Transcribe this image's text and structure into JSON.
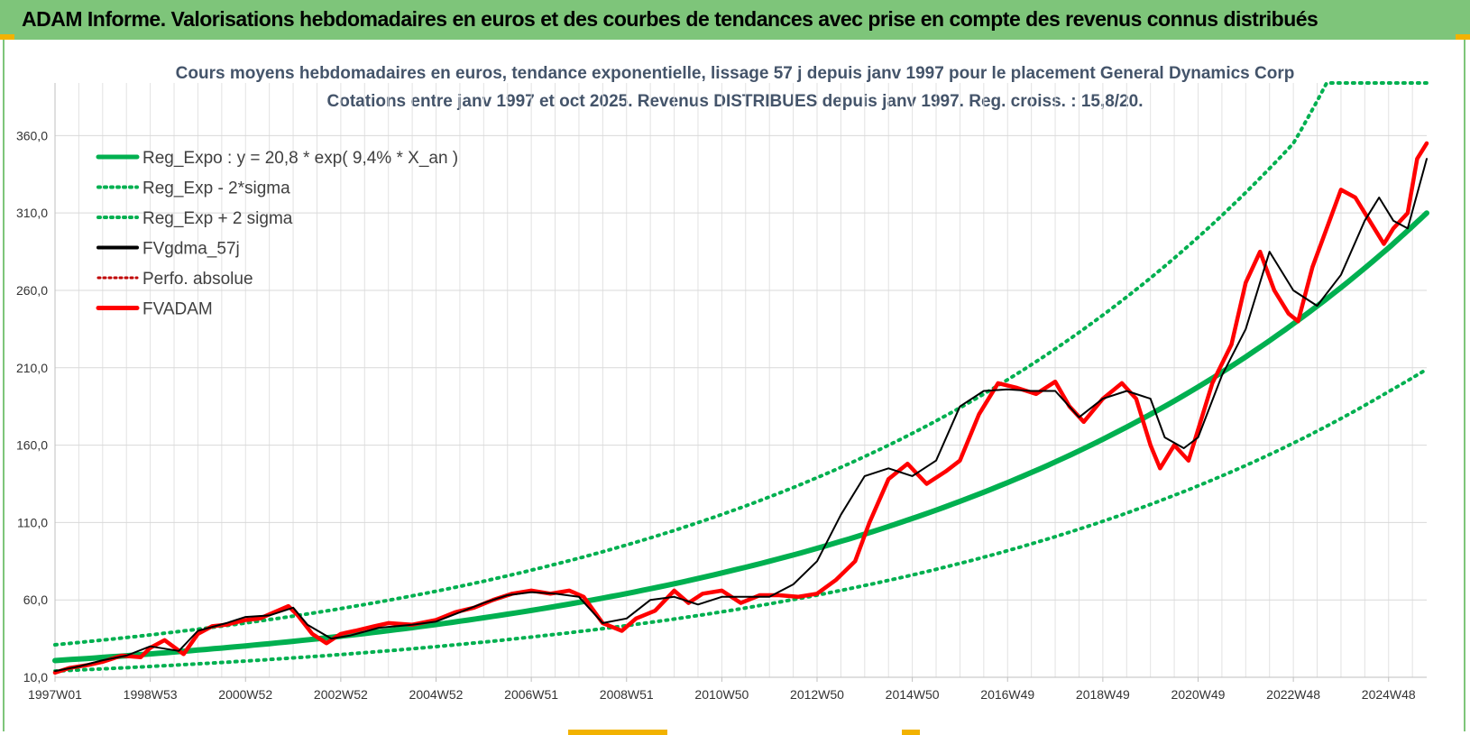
{
  "banner": {
    "title": "ADAM Informe. Valorisations hebdomadaires en euros et des courbes de tendances avec prise en compte des revenus connus distribués"
  },
  "colors": {
    "banner": "#7ec57a",
    "reg_expo": "#00b050",
    "fvgdma": "#000000",
    "fvadam": "#ff0000",
    "perfo": "#c00000",
    "accent": "#f2b200"
  },
  "chart_data": {
    "type": "line",
    "title": "Cours moyens hebdomadaires en euros, tendance exponentielle, lissage 57 j depuis janv 1997 pour le placement General Dynamics Corp",
    "subtitle": "Cotations entre janv 1997 et oct 2025. Revenus DISTRIBUES depuis janv 1997. Reg. croiss. : 15,8/20.",
    "xlabel": "",
    "ylabel": "",
    "xlim": [
      1997.0,
      2025.8
    ],
    "ylim": [
      10,
      394
    ],
    "y_ticks": [
      10,
      60,
      110,
      160,
      210,
      260,
      310,
      360
    ],
    "y_tick_labels": [
      "10,0",
      "60,0",
      "110,0",
      "160,0",
      "210,0",
      "260,0",
      "310,0",
      "360,0"
    ],
    "x_ticks": [
      1997.0,
      1999.0,
      2001.0,
      2003.0,
      2005.0,
      2007.0,
      2009.0,
      2011.0,
      2013.0,
      2015.0,
      2017.0,
      2019.0,
      2021.0,
      2023.0,
      2025.0
    ],
    "x_tick_labels": [
      "1997W01",
      "1998W53",
      "2000W52",
      "2002W52",
      "2004W52",
      "2006W51",
      "2008W51",
      "2010W50",
      "2012W50",
      "2014W50",
      "2016W49",
      "2018W49",
      "2020W49",
      "2022W48",
      "2024W48"
    ],
    "legend": [
      {
        "name": "Reg_Expo : y = 20,8 * exp( 9,4% *  X_an )",
        "style": "solid-green"
      },
      {
        "name": "Reg_Exp - 2*sigma",
        "style": "dotted-green"
      },
      {
        "name": "Reg_Exp + 2 sigma",
        "style": "dotted-green"
      },
      {
        "name": "FVgdma_57j",
        "style": "solid-black"
      },
      {
        "name": "Perfo. absolue",
        "style": "dotted-red"
      },
      {
        "name": "FVADAM",
        "style": "solid-red"
      }
    ],
    "legend_position": "top-left",
    "series": [
      {
        "name": "Reg_Expo",
        "x": [
          1997.0,
          1999.0,
          2001.0,
          2003.0,
          2005.0,
          2007.0,
          2009.0,
          2011.0,
          2013.0,
          2015.0,
          2017.0,
          2019.0,
          2021.0,
          2023.0,
          2025.0,
          2025.8
        ],
        "values": [
          20.8,
          25.1,
          30.3,
          36.5,
          44.1,
          53.2,
          64.1,
          77.4,
          93.3,
          112.6,
          135.8,
          163.8,
          197.6,
          238.4,
          287.5,
          310.0
        ]
      },
      {
        "name": "Reg_Exp - 2*sigma",
        "x": [
          1997.0,
          1999.0,
          2001.0,
          2003.0,
          2005.0,
          2007.0,
          2009.0,
          2011.0,
          2013.0,
          2015.0,
          2017.0,
          2019.0,
          2021.0,
          2023.0,
          2025.0,
          2025.8
        ],
        "values": [
          14.0,
          17.0,
          20.5,
          24.7,
          29.8,
          36.0,
          43.4,
          52.3,
          63.1,
          76.1,
          91.8,
          110.8,
          133.7,
          161.3,
          194.6,
          209.0
        ]
      },
      {
        "name": "Reg_Exp + 2 sigma",
        "x": [
          1997.0,
          1999.0,
          2001.0,
          2003.0,
          2005.0,
          2007.0,
          2009.0,
          2011.0,
          2013.0,
          2015.0,
          2017.0,
          2019.0,
          2021.0,
          2023.0,
          2023.7,
          2025.8
        ],
        "values": [
          31.0,
          37.4,
          45.1,
          54.4,
          65.6,
          79.2,
          95.5,
          115.2,
          139.0,
          167.6,
          202.3,
          244.0,
          294.3,
          355.0,
          394.0,
          394.0
        ]
      },
      {
        "name": "FVgdma_57j",
        "x": [
          1997.0,
          1997.5,
          1998.0,
          1998.5,
          1999.0,
          1999.6,
          2000.0,
          2000.6,
          2001.0,
          2001.5,
          2002.0,
          2002.3,
          2002.8,
          2003.2,
          2003.8,
          2004.5,
          2005.0,
          2005.5,
          2006.0,
          2006.5,
          2007.0,
          2007.5,
          2008.0,
          2008.5,
          2009.0,
          2009.5,
          2010.0,
          2010.5,
          2011.0,
          2011.5,
          2012.0,
          2012.5,
          2013.0,
          2013.5,
          2014.0,
          2014.5,
          2015.0,
          2015.5,
          2016.0,
          2016.5,
          2017.0,
          2017.5,
          2018.0,
          2018.5,
          2019.0,
          2019.5,
          2020.0,
          2020.3,
          2020.7,
          2021.0,
          2021.5,
          2022.0,
          2022.5,
          2023.0,
          2023.5,
          2024.0,
          2024.5,
          2024.8,
          2025.1,
          2025.4,
          2025.8
        ],
        "values": [
          14,
          17,
          21,
          24,
          30,
          27,
          40,
          45,
          49,
          50,
          55,
          44,
          35,
          37,
          42,
          44,
          46,
          52,
          58,
          63,
          65,
          64,
          62,
          45,
          48,
          60,
          62,
          57,
          62,
          62,
          62,
          70,
          85,
          115,
          140,
          145,
          140,
          150,
          185,
          195,
          196,
          195,
          195,
          178,
          190,
          195,
          190,
          165,
          158,
          165,
          205,
          235,
          285,
          260,
          250,
          270,
          305,
          320,
          305,
          300,
          345
        ]
      },
      {
        "name": "FVADAM",
        "x": [
          1997.0,
          1997.3,
          1997.7,
          1998.0,
          1998.4,
          1998.8,
          1999.0,
          1999.3,
          1999.7,
          2000.0,
          2000.3,
          2000.6,
          2001.0,
          2001.3,
          2001.6,
          2001.9,
          2002.1,
          2002.4,
          2002.7,
          2003.0,
          2003.3,
          2003.7,
          2004.0,
          2004.5,
          2005.0,
          2005.4,
          2005.8,
          2006.2,
          2006.6,
          2007.0,
          2007.4,
          2007.8,
          2008.1,
          2008.5,
          2008.9,
          2009.2,
          2009.6,
          2010.0,
          2010.3,
          2010.6,
          2011.0,
          2011.4,
          2011.8,
          2012.2,
          2012.6,
          2013.0,
          2013.4,
          2013.8,
          2014.1,
          2014.5,
          2014.9,
          2015.3,
          2015.7,
          2016.0,
          2016.4,
          2016.8,
          2017.2,
          2017.6,
          2018.0,
          2018.3,
          2018.6,
          2019.0,
          2019.4,
          2019.7,
          2020.0,
          2020.2,
          2020.5,
          2020.8,
          2021.0,
          2021.3,
          2021.7,
          2022.0,
          2022.3,
          2022.6,
          2022.9,
          2023.1,
          2023.4,
          2023.7,
          2024.0,
          2024.3,
          2024.6,
          2024.9,
          2025.1,
          2025.4,
          2025.6,
          2025.8
        ],
        "values": [
          13,
          16,
          18,
          20,
          24,
          23,
          29,
          34,
          25,
          38,
          43,
          44,
          47,
          48,
          52,
          56,
          50,
          38,
          32,
          38,
          40,
          43,
          45,
          44,
          47,
          52,
          55,
          60,
          64,
          66,
          64,
          66,
          62,
          45,
          40,
          48,
          53,
          66,
          58,
          64,
          66,
          58,
          63,
          63,
          62,
          64,
          73,
          85,
          110,
          138,
          148,
          135,
          143,
          150,
          180,
          200,
          197,
          193,
          201,
          185,
          175,
          190,
          200,
          190,
          160,
          145,
          160,
          150,
          170,
          200,
          225,
          265,
          285,
          260,
          245,
          240,
          275,
          300,
          325,
          320,
          305,
          290,
          300,
          310,
          345,
          355
        ]
      }
    ]
  }
}
